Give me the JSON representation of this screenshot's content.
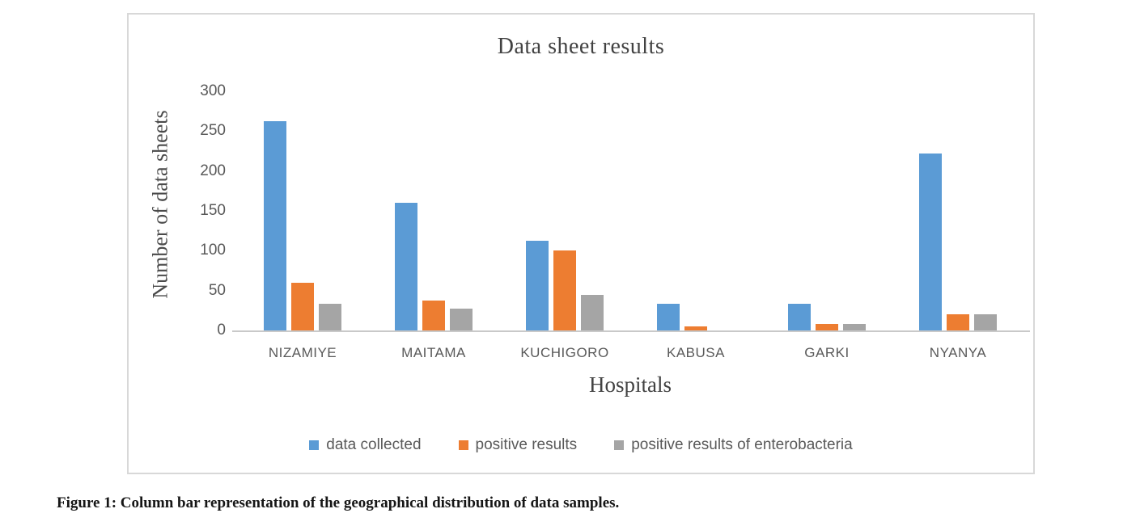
{
  "figure": {
    "caption": "Figure 1: Column bar representation of the geographical distribution of data samples."
  },
  "chart_data": {
    "type": "bar",
    "title": "Data sheet results",
    "xlabel": "Hospitals",
    "ylabel": "Number of data sheets",
    "categories": [
      "NIZAMIYE",
      "MAITAMA",
      "KUCHIGORO",
      "KABUSA",
      "GARKI",
      "NYANYA"
    ],
    "series": [
      {
        "name": "data collected",
        "color": "#5B9BD5",
        "values": [
          262,
          160,
          112,
          33,
          33,
          222
        ]
      },
      {
        "name": "positive results",
        "color": "#ED7D31",
        "values": [
          60,
          37,
          100,
          5,
          8,
          20
        ]
      },
      {
        "name": "positive results of enterobacteria",
        "color": "#A5A5A5",
        "values": [
          33,
          27,
          45,
          0,
          8,
          20
        ]
      }
    ],
    "ylim": [
      0,
      300
    ],
    "yticks": [
      300,
      250,
      200,
      150,
      100,
      50,
      0
    ],
    "grid": false,
    "legend_position": "bottom"
  },
  "colors": {
    "frame_border": "#d8d8d8",
    "axis_line": "#c9c9c9",
    "tick_text": "#595959",
    "title_text": "#424242",
    "caption_text": "#161616"
  }
}
